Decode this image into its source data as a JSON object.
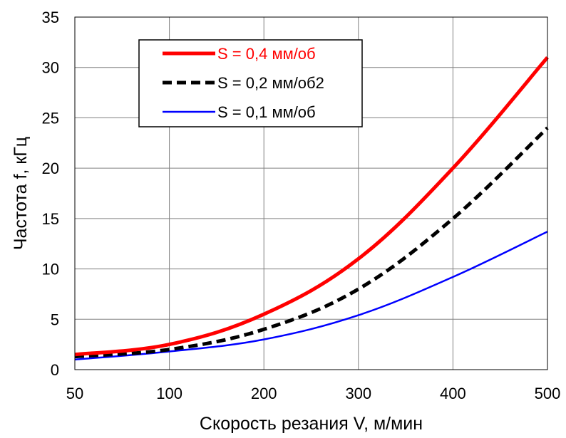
{
  "chart_data": {
    "type": "line",
    "xlabel": "Скорость резания V, м/мин",
    "ylabel": "Частота f, кГц",
    "x_categories": [
      "50",
      "100",
      "200",
      "300",
      "400",
      "500"
    ],
    "ylim": [
      0,
      35
    ],
    "y_ticks": [
      "0",
      "5",
      "10",
      "15",
      "20",
      "25",
      "30",
      "35"
    ],
    "grid": true,
    "legend_position": "top-left",
    "series": [
      {
        "name": "S = 0,4 мм/об",
        "color": "#ff0000",
        "style": "solid-thick",
        "name_color": "#ff0000",
        "values": [
          1.5,
          2.5,
          5.5,
          11,
          20,
          31
        ]
      },
      {
        "name": "S = 0,2 мм/об2",
        "color": "#000000",
        "style": "dashed-thick",
        "name_color": "#000000",
        "values": [
          1.3,
          2.0,
          4.0,
          8.0,
          15,
          24
        ]
      },
      {
        "name": "S = 0,1 мм/об",
        "color": "#0000ff",
        "style": "solid-thin",
        "name_color": "#000000",
        "values": [
          1.0,
          1.8,
          3.0,
          5.4,
          9.2,
          13.7
        ]
      }
    ]
  }
}
